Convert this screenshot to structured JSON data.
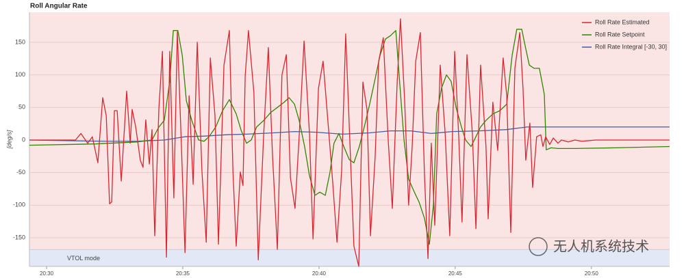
{
  "chart_data": {
    "type": "line",
    "title": "Roll Angular Rate",
    "y_label": "[deg/s]",
    "watermark": "无人机系统技术",
    "background": "#fbe4e4",
    "bands": [
      {
        "label": "VTOL mode",
        "color": "#e3e8f6",
        "y": [
          -194,
          -168
        ]
      }
    ],
    "xlim": [
      29.37,
      52.87
    ],
    "xticks": [
      {
        "value": 30,
        "label": "20:30"
      },
      {
        "value": 35,
        "label": "20:35"
      },
      {
        "value": 40,
        "label": "20:40"
      },
      {
        "value": 45,
        "label": "20:45"
      },
      {
        "value": 50,
        "label": "20:50"
      }
    ],
    "ylim": [
      -194,
      196
    ],
    "yticks": [
      -150,
      -100,
      -50,
      0,
      50,
      100,
      150
    ],
    "grid": true,
    "legend": "top-right",
    "series": [
      {
        "name": "Roll Rate Estimated",
        "color": "#d7262f",
        "x": [
          29.37,
          31.06,
          31.26,
          31.51,
          31.68,
          31.88,
          32.06,
          32.19,
          32.31,
          32.39,
          32.49,
          32.59,
          32.74,
          32.94,
          33.07,
          33.14,
          33.27,
          33.44,
          33.54,
          33.64,
          33.77,
          33.87,
          33.97,
          34.12,
          34.25,
          34.4,
          34.52,
          34.67,
          34.8,
          34.95,
          35.08,
          35.23,
          35.38,
          35.53,
          35.7,
          35.86,
          36.01,
          36.18,
          36.31,
          36.51,
          36.71,
          36.84,
          36.96,
          37.11,
          37.21,
          37.29,
          37.41,
          37.61,
          37.77,
          37.97,
          38.14,
          38.29,
          38.47,
          38.64,
          38.8,
          38.95,
          39.12,
          39.27,
          39.45,
          39.65,
          39.78,
          39.98,
          40.15,
          40.35,
          40.5,
          40.66,
          40.83,
          40.98,
          41.13,
          41.28,
          41.46,
          41.61,
          41.76,
          41.89,
          42.06,
          42.19,
          42.36,
          42.54,
          42.69,
          42.87,
          42.99,
          43.14,
          43.29,
          43.42,
          43.55,
          43.72,
          43.87,
          44.0,
          44.12,
          44.25,
          44.45,
          44.63,
          44.8,
          44.98,
          45.13,
          45.25,
          45.43,
          45.63,
          45.76,
          45.93,
          46.13,
          46.21,
          46.38,
          46.56,
          46.76,
          46.89,
          47.04,
          47.19,
          47.37,
          47.49,
          47.59,
          47.74,
          47.84,
          47.99,
          48.14,
          48.22,
          48.32,
          48.47,
          48.6,
          48.77,
          48.9,
          49.15,
          49.4,
          49.65,
          50.15,
          52.87
        ],
        "values": [
          0,
          0,
          10,
          -5,
          5,
          -35,
          65,
          37,
          -98,
          -95,
          45,
          45,
          -63,
          75,
          -5,
          47,
          20,
          -31,
          -42,
          31,
          -37,
          16,
          -147,
          47,
          136,
          -180,
          136,
          -89,
          166,
          -10,
          -173,
          68,
          -68,
          150,
          -47,
          -157,
          126,
          37,
          -160,
          115,
          168,
          -47,
          -163,
          -49,
          -70,
          98,
          168,
          73,
          -184,
          10,
          142,
          -21,
          -168,
          100,
          131,
          -58,
          -105,
          5,
          152,
          10,
          -152,
          79,
          121,
          16,
          -63,
          -157,
          -47,
          163,
          0,
          -163,
          -194,
          89,
          47,
          -147,
          -26,
          121,
          157,
          0,
          -105,
          89,
          186,
          63,
          -100,
          -10,
          121,
          165,
          -52,
          -182,
          -5,
          -131,
          115,
          10,
          -147,
          136,
          5,
          -126,
          131,
          10,
          -136,
          115,
          -10,
          -121,
          58,
          -16,
          126,
          68,
          -142,
          110,
          165,
          79,
          -31,
          26,
          -73,
          5,
          8,
          -10,
          5,
          -7,
          3,
          -5,
          0,
          -3,
          0,
          -2,
          0,
          0
        ]
      },
      {
        "name": "Roll Rate Setpoint",
        "color": "#2f8500",
        "x": [
          29.37,
          31.81,
          33.32,
          33.87,
          34.12,
          34.32,
          34.52,
          34.65,
          34.82,
          34.98,
          35.13,
          35.33,
          35.58,
          35.78,
          35.96,
          36.21,
          36.46,
          36.71,
          36.96,
          37.14,
          37.34,
          37.51,
          37.71,
          37.97,
          38.22,
          38.47,
          38.72,
          38.9,
          39.1,
          39.27,
          39.47,
          39.65,
          39.85,
          40.03,
          40.23,
          40.4,
          40.55,
          40.73,
          40.91,
          41.11,
          41.28,
          41.48,
          41.69,
          41.86,
          42.04,
          42.24,
          42.44,
          42.62,
          42.82,
          42.94,
          43.12,
          43.29,
          43.5,
          43.67,
          43.87,
          44.05,
          44.2,
          44.32,
          44.5,
          44.68,
          44.85,
          45.03,
          45.23,
          45.38,
          45.58,
          45.76,
          45.93,
          46.13,
          46.38,
          46.64,
          46.89,
          47.09,
          47.26,
          47.44,
          47.59,
          47.72,
          47.89,
          48.09,
          48.27,
          48.34,
          48.52,
          48.77,
          49.4,
          50.91,
          52.87
        ],
        "values": [
          -8,
          -6,
          -3,
          0,
          20,
          30,
          90,
          168,
          168,
          130,
          60,
          30,
          0,
          -2,
          5,
          20,
          45,
          62,
          40,
          15,
          -5,
          0,
          20,
          30,
          42,
          50,
          58,
          65,
          55,
          30,
          -10,
          -55,
          -85,
          -80,
          -85,
          -50,
          -5,
          10,
          -10,
          -30,
          -35,
          -10,
          25,
          55,
          90,
          130,
          155,
          160,
          168,
          100,
          0,
          -60,
          -80,
          -95,
          -120,
          -160,
          -100,
          40,
          80,
          100,
          90,
          50,
          20,
          0,
          -10,
          5,
          20,
          30,
          40,
          45,
          55,
          130,
          170,
          170,
          140,
          115,
          110,
          110,
          70,
          -15,
          -12,
          -13,
          -13,
          -12,
          -10
        ]
      },
      {
        "name": "Roll Rate Integral [-30, 30]",
        "color": "#3b5fa6",
        "x": [
          29.37,
          32.06,
          33.32,
          34.32,
          35.08,
          35.83,
          36.58,
          37.34,
          38.34,
          39.1,
          39.85,
          40.86,
          41.86,
          42.62,
          43.37,
          44.12,
          44.88,
          45.88,
          46.89,
          47.64,
          52.87
        ],
        "values": [
          0,
          -2,
          -2,
          0,
          5,
          6,
          8,
          9,
          11,
          13,
          12,
          9,
          11,
          14,
          14,
          10,
          13,
          14,
          16,
          20,
          20
        ]
      }
    ]
  }
}
